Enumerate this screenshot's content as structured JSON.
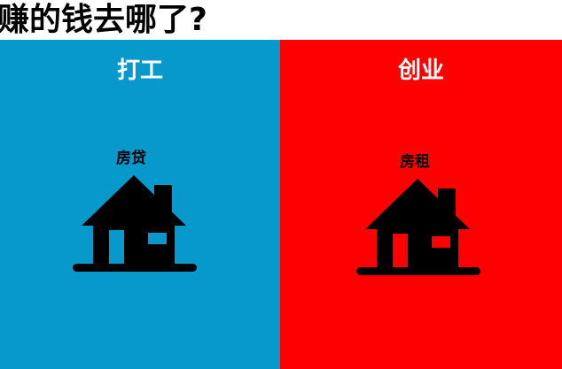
{
  "title": "赚的钱去哪了?",
  "left_panel": {
    "heading": "打工",
    "house_label": "房贷",
    "icon": "house-icon"
  },
  "right_panel": {
    "heading": "创业",
    "house_label": "房租",
    "icon": "house-icon"
  },
  "colors": {
    "left_background": "#0899cc",
    "right_background": "#ff0000",
    "heading_text": "#ffffff",
    "icon": "#000000"
  }
}
